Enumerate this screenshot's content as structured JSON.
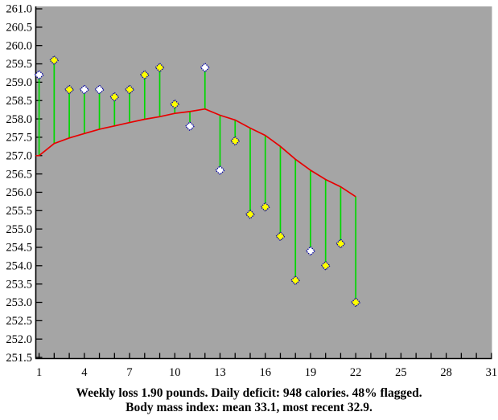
{
  "chart_data": {
    "type": "scatter",
    "title": "",
    "xlabel": "",
    "ylabel": "",
    "x_range": [
      1,
      31
    ],
    "y_range": [
      251.5,
      261.0
    ],
    "y_tick_step": 0.5,
    "x_tick_step": 1,
    "x_tick_labels": [
      1,
      4,
      7,
      10,
      13,
      16,
      19,
      22,
      25,
      28,
      31
    ],
    "grid": "off",
    "legend": "none",
    "days": [
      1,
      2,
      3,
      4,
      5,
      6,
      7,
      8,
      9,
      10,
      11,
      12,
      13,
      14,
      15,
      16,
      17,
      18,
      19,
      20,
      21,
      22
    ],
    "series": [
      {
        "name": "daily-weight",
        "marker": "diamond",
        "values": [
          259.2,
          259.6,
          258.8,
          258.8,
          258.8,
          258.6,
          258.8,
          259.2,
          259.4,
          258.4,
          257.8,
          259.4,
          256.6,
          257.4,
          255.4,
          255.6,
          254.8,
          253.6,
          254.4,
          254.0,
          254.6,
          253.0
        ],
        "flagged": [
          false,
          true,
          true,
          false,
          false,
          true,
          true,
          true,
          true,
          true,
          false,
          false,
          false,
          true,
          true,
          true,
          true,
          true,
          false,
          true,
          true,
          true
        ]
      },
      {
        "name": "trend",
        "marker": "none",
        "values": [
          257.0,
          257.33,
          257.48,
          257.6,
          257.72,
          257.81,
          257.9,
          257.99,
          258.06,
          258.15,
          258.2,
          258.27,
          258.1,
          257.97,
          257.75,
          257.55,
          257.25,
          256.9,
          256.6,
          256.35,
          256.15,
          255.88
        ]
      }
    ]
  },
  "captions": {
    "line1": "Weekly loss 1.90 pounds. Daily deficit: 948 calories. 48% flagged.",
    "line2": "Body mass index: mean 33.1, most recent 32.9."
  },
  "colors": {
    "plot_background": "#a5a5a5",
    "axis": "#000000",
    "float_line": "#00d800",
    "trend_line": "#e80000",
    "marker_border": "#0000a0",
    "flagged_fill": "#ffff00",
    "unflagged_fill": "#ffffff",
    "caption_text": "#000000"
  }
}
